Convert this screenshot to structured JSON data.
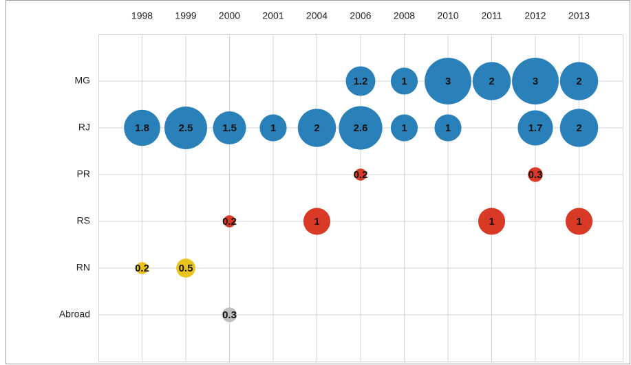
{
  "chart_data": {
    "type": "bubble",
    "x_categories": [
      "1998",
      "1999",
      "2000",
      "2001",
      "2004",
      "2006",
      "2008",
      "2010",
      "2011",
      "2012",
      "2013"
    ],
    "series": [
      {
        "name": "MG",
        "color": "#2a80b9",
        "values": [
          null,
          null,
          null,
          null,
          null,
          1.2,
          1,
          3,
          2,
          3,
          2
        ]
      },
      {
        "name": "RJ",
        "color": "#2a80b9",
        "values": [
          1.8,
          2.5,
          1.5,
          1,
          2,
          2.6,
          1,
          1,
          null,
          1.7,
          2
        ]
      },
      {
        "name": "PR",
        "color": "#d93a26",
        "values": [
          null,
          null,
          null,
          null,
          null,
          0.2,
          null,
          null,
          null,
          0.3,
          null
        ]
      },
      {
        "name": "RS",
        "color": "#d93a26",
        "values": [
          null,
          null,
          0.2,
          null,
          1,
          null,
          null,
          null,
          1,
          null,
          1
        ]
      },
      {
        "name": "RN",
        "color": "#e8c41c",
        "values": [
          0.2,
          0.5,
          null,
          null,
          null,
          null,
          null,
          null,
          null,
          null,
          null
        ]
      },
      {
        "name": "Abroad",
        "color": "#c0c0c0",
        "values": [
          null,
          null,
          0.3,
          null,
          null,
          null,
          null,
          null,
          null,
          null,
          null
        ]
      }
    ],
    "grid": true
  }
}
